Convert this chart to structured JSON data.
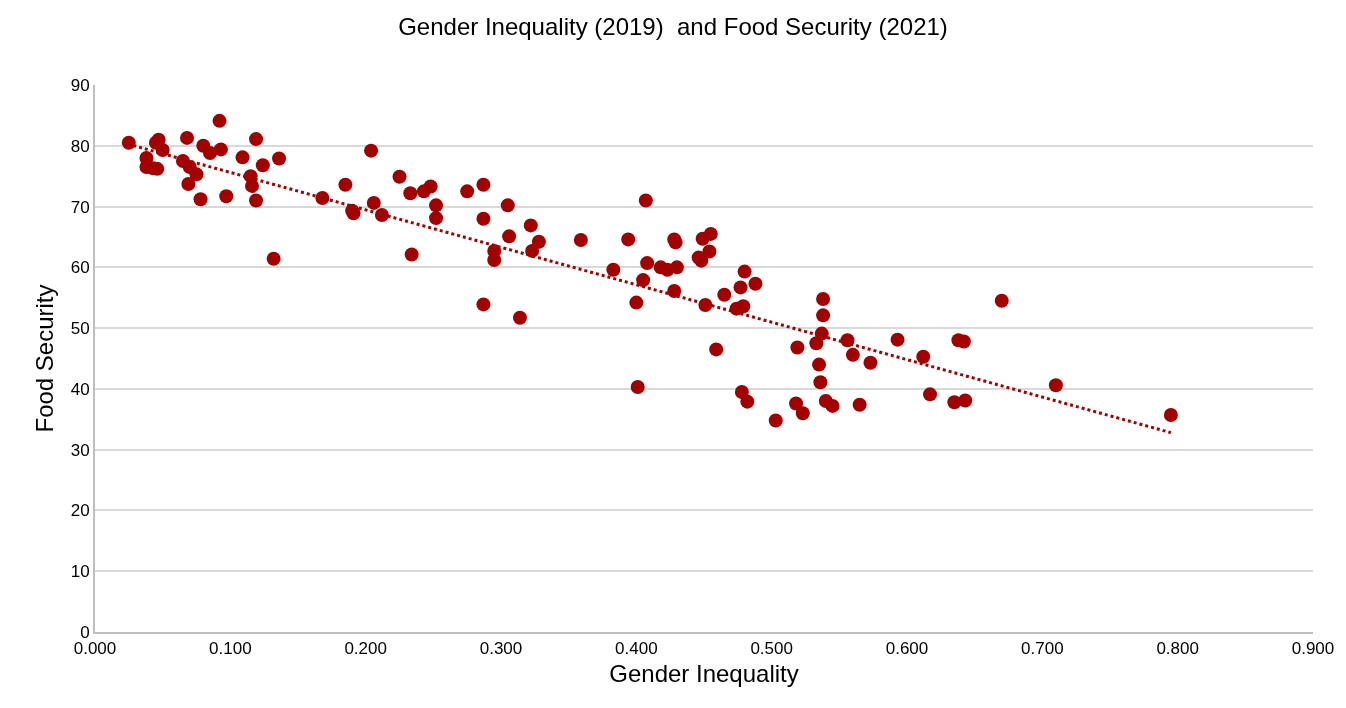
{
  "chart_data": {
    "type": "scatter",
    "title": "Gender Inequality (2019)  and Food Security (2021)",
    "xlabel": "Gender Inequality",
    "ylabel": "Food Security",
    "xlim": [
      0,
      0.9
    ],
    "xticks": [
      {
        "value": 0,
        "label": "0.000"
      },
      {
        "value": 0.1,
        "label": "0.100"
      },
      {
        "value": 0.2,
        "label": "0.200"
      },
      {
        "value": 0.3,
        "label": "0.300"
      },
      {
        "value": 0.4,
        "label": "0.400"
      },
      {
        "value": 0.5,
        "label": "0.500"
      },
      {
        "value": 0.6,
        "label": "0.600"
      },
      {
        "value": 0.7,
        "label": "0.700"
      },
      {
        "value": 0.8,
        "label": "0.800"
      },
      {
        "value": 0.9,
        "label": "0.900"
      }
    ],
    "ylim": [
      0,
      90
    ],
    "yticks": [
      0,
      10,
      20,
      30,
      40,
      50,
      60,
      70,
      80,
      90
    ],
    "grid": "y",
    "marker": "circle",
    "series": [
      {
        "color": "#a50000",
        "x": [
          0.025,
          0.038,
          0.038,
          0.043,
          0.046,
          0.047,
          0.05,
          0.045,
          0.065,
          0.068,
          0.069,
          0.07,
          0.075,
          0.078,
          0.08,
          0.085,
          0.092,
          0.093,
          0.097,
          0.109,
          0.115,
          0.116,
          0.119,
          0.119,
          0.124,
          0.132,
          0.136,
          0.168,
          0.185,
          0.19,
          0.191,
          0.204,
          0.206,
          0.212,
          0.225,
          0.233,
          0.234,
          0.243,
          0.248,
          0.252,
          0.252,
          0.275,
          0.287,
          0.287,
          0.287,
          0.295,
          0.295,
          0.305,
          0.306,
          0.314,
          0.322,
          0.323,
          0.328,
          0.359,
          0.383,
          0.394,
          0.4,
          0.401,
          0.405,
          0.407,
          0.408,
          0.418,
          0.423,
          0.428,
          0.429,
          0.428,
          0.43,
          0.446,
          0.448,
          0.449,
          0.451,
          0.454,
          0.455,
          0.459,
          0.465,
          0.474,
          0.477,
          0.478,
          0.479,
          0.48,
          0.482,
          0.488,
          0.503,
          0.518,
          0.519,
          0.523,
          0.533,
          0.535,
          0.536,
          0.537,
          0.538,
          0.538,
          0.54,
          0.545,
          0.556,
          0.56,
          0.565,
          0.573,
          0.593,
          0.612,
          0.617,
          0.635,
          0.638,
          0.642,
          0.643,
          0.67,
          0.71,
          0.795
        ],
        "values": [
          80.5,
          78,
          76.5,
          76.3,
          76.2,
          81,
          79.3,
          80.5,
          77.5,
          81.3,
          73.7,
          76.5,
          75.3,
          71.2,
          80,
          78.8,
          84.1,
          79.4,
          71.7,
          78.1,
          75,
          73.4,
          81.1,
          71,
          76.8,
          61.4,
          77.9,
          71.4,
          73.6,
          69.3,
          68.9,
          79.2,
          70.6,
          68.6,
          74.9,
          72.2,
          62.1,
          72.5,
          73.3,
          70.2,
          68.1,
          72.5,
          73.6,
          68,
          53.9,
          62.7,
          61.2,
          70.2,
          65.1,
          51.7,
          66.9,
          62.7,
          64.2,
          64.5,
          59.6,
          64.6,
          54.2,
          40.3,
          57.9,
          71,
          60.7,
          60,
          59.6,
          64.6,
          64.1,
          56.1,
          60,
          61.6,
          61.1,
          64.7,
          53.8,
          62.6,
          65.5,
          46.5,
          55.5,
          53.2,
          56.7,
          39.5,
          53.6,
          59.3,
          37.9,
          57.3,
          34.8,
          37.6,
          46.8,
          36,
          47.5,
          44,
          41.1,
          49.1,
          52.1,
          54.8,
          38,
          37.2,
          48,
          45.6,
          37.4,
          44.3,
          48.1,
          45.3,
          39.1,
          37.8,
          48,
          47.8,
          38.1,
          54.5,
          40.6,
          35.7
        ]
      },
      {
        "type": "line",
        "color": "#a50000",
        "marker": "none",
        "line_style": "dotted",
        "x": [
          0.024,
          0.795
        ],
        "values": [
          80.3,
          32.8
        ]
      }
    ]
  }
}
